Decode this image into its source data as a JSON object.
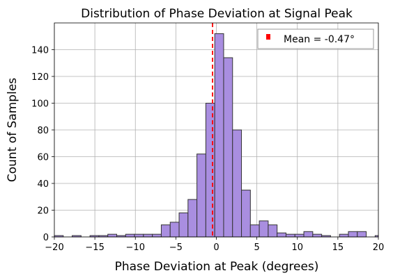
{
  "chart_data": {
    "type": "bar",
    "title": "Distribution of Phase Deviation at Signal Peak",
    "xlabel": "Phase Deviation at Peak (degrees)",
    "ylabel": "Count of Samples",
    "xlim": [
      -20,
      20
    ],
    "ylim": [
      0,
      160
    ],
    "xticks": [
      -20,
      -15,
      -10,
      -5,
      0,
      5,
      10,
      15,
      20
    ],
    "xtick_labels": [
      "−20",
      "−15",
      "−10",
      "−5",
      "0",
      "5",
      "10",
      "15",
      "20"
    ],
    "yticks": [
      0,
      20,
      40,
      60,
      80,
      100,
      120,
      140
    ],
    "ytick_labels": [
      "0",
      "20",
      "40",
      "60",
      "80",
      "100",
      "120",
      "140"
    ],
    "grid": true,
    "bar_color": "#a98ee0",
    "bar_edge_color": "#333333",
    "bins": [
      {
        "x0": -20.0,
        "x1": -18.9,
        "count": 1
      },
      {
        "x0": -17.8,
        "x1": -16.7,
        "count": 1
      },
      {
        "x0": -15.6,
        "x1": -14.5,
        "count": 1
      },
      {
        "x0": -14.5,
        "x1": -13.4,
        "count": 1
      },
      {
        "x0": -13.4,
        "x1": -12.3,
        "count": 2
      },
      {
        "x0": -12.3,
        "x1": -11.2,
        "count": 1
      },
      {
        "x0": -11.2,
        "x1": -10.1,
        "count": 2
      },
      {
        "x0": -10.1,
        "x1": -9.0,
        "count": 2
      },
      {
        "x0": -9.0,
        "x1": -7.9,
        "count": 2
      },
      {
        "x0": -7.9,
        "x1": -6.8,
        "count": 2
      },
      {
        "x0": -6.8,
        "x1": -5.7,
        "count": 9
      },
      {
        "x0": -5.7,
        "x1": -4.6,
        "count": 11
      },
      {
        "x0": -4.6,
        "x1": -3.5,
        "count": 18
      },
      {
        "x0": -3.5,
        "x1": -2.4,
        "count": 28
      },
      {
        "x0": -2.4,
        "x1": -1.3,
        "count": 62
      },
      {
        "x0": -1.3,
        "x1": -0.2,
        "count": 100
      },
      {
        "x0": -0.2,
        "x1": 0.9,
        "count": 152
      },
      {
        "x0": 0.9,
        "x1": 2.0,
        "count": 134
      },
      {
        "x0": 2.0,
        "x1": 3.1,
        "count": 80
      },
      {
        "x0": 3.1,
        "x1": 4.2,
        "count": 35
      },
      {
        "x0": 4.2,
        "x1": 5.3,
        "count": 9
      },
      {
        "x0": 5.3,
        "x1": 6.4,
        "count": 12
      },
      {
        "x0": 6.4,
        "x1": 7.5,
        "count": 9
      },
      {
        "x0": 7.5,
        "x1": 8.6,
        "count": 3
      },
      {
        "x0": 8.6,
        "x1": 9.7,
        "count": 2
      },
      {
        "x0": 9.7,
        "x1": 10.8,
        "count": 2
      },
      {
        "x0": 10.8,
        "x1": 11.9,
        "count": 4
      },
      {
        "x0": 11.9,
        "x1": 13.0,
        "count": 2
      },
      {
        "x0": 13.0,
        "x1": 14.1,
        "count": 1
      },
      {
        "x0": 15.2,
        "x1": 16.3,
        "count": 2
      },
      {
        "x0": 16.3,
        "x1": 17.4,
        "count": 4
      },
      {
        "x0": 17.4,
        "x1": 18.5,
        "count": 4
      },
      {
        "x0": 19.6,
        "x1": 20.0,
        "count": 1
      }
    ],
    "mean_line": {
      "x": -0.47,
      "color": "#ff0000",
      "style": "dashed"
    },
    "legend": {
      "position": "top-right",
      "label": "Mean = -0.47°",
      "color": "#ff0000"
    }
  }
}
